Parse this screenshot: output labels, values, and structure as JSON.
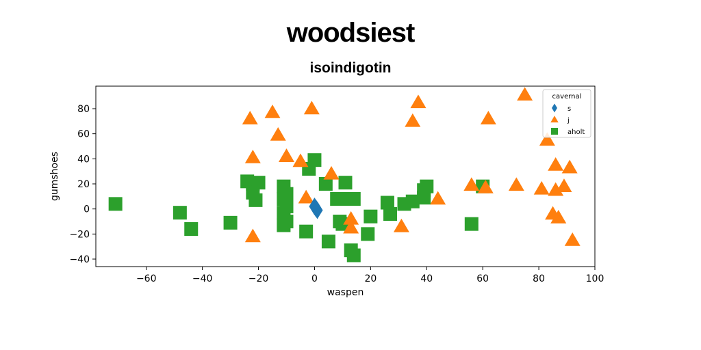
{
  "chart_data": {
    "type": "scatter",
    "title": "woodsiest",
    "subtitle": "isoindigotin",
    "xlabel": "waspen",
    "ylabel": "gumshoes",
    "xlim": [
      -78,
      100
    ],
    "ylim": [
      -46,
      98
    ],
    "xticks": [
      -60,
      -40,
      -20,
      0,
      20,
      40,
      60,
      80,
      100
    ],
    "yticks": [
      -40,
      -20,
      0,
      20,
      40,
      60,
      80
    ],
    "grid": false,
    "legend_title": "cavernal",
    "legend_position": "top-right",
    "series": [
      {
        "name": "s",
        "marker": "diamond",
        "color": "#1f77b4",
        "points": [
          [
            0.5,
            0.5
          ],
          [
            0.0,
            2.0
          ],
          [
            1.0,
            -1.0
          ]
        ]
      },
      {
        "name": "j",
        "marker": "triangle",
        "color": "#ff7f0e",
        "points": [
          [
            -23,
            72
          ],
          [
            -15,
            77
          ],
          [
            -13,
            59
          ],
          [
            -1,
            80
          ],
          [
            -22,
            41
          ],
          [
            -10,
            42
          ],
          [
            -5,
            38
          ],
          [
            -3,
            9
          ],
          [
            6,
            28
          ],
          [
            13,
            -8
          ],
          [
            13,
            -15
          ],
          [
            31,
            -14
          ],
          [
            35,
            70
          ],
          [
            37,
            85
          ],
          [
            44,
            8
          ],
          [
            56,
            19
          ],
          [
            61,
            17
          ],
          [
            62,
            72
          ],
          [
            72,
            19
          ],
          [
            75,
            91
          ],
          [
            81,
            16
          ],
          [
            83,
            55
          ],
          [
            85,
            -4
          ],
          [
            86,
            35
          ],
          [
            86,
            15
          ],
          [
            87,
            -7
          ],
          [
            89,
            18
          ],
          [
            91,
            33
          ],
          [
            92,
            -25
          ],
          [
            -22,
            -22
          ]
        ]
      },
      {
        "name": "aholt",
        "marker": "square",
        "color": "#2ca02c",
        "points": [
          [
            -71,
            4
          ],
          [
            -48,
            -3
          ],
          [
            -44,
            -16
          ],
          [
            -30,
            -11
          ],
          [
            -24,
            22
          ],
          [
            -22,
            20
          ],
          [
            -22,
            13
          ],
          [
            -21,
            7
          ],
          [
            -20,
            21
          ],
          [
            -11,
            18
          ],
          [
            -11,
            8
          ],
          [
            -11,
            -3
          ],
          [
            -11,
            -13
          ],
          [
            -10,
            12
          ],
          [
            -10,
            2
          ],
          [
            -10,
            -10
          ],
          [
            -3,
            -18
          ],
          [
            -2,
            32
          ],
          [
            0,
            39
          ],
          [
            4,
            20
          ],
          [
            5,
            -26
          ],
          [
            8,
            8
          ],
          [
            9,
            -10
          ],
          [
            10,
            -12
          ],
          [
            11,
            21
          ],
          [
            12,
            8
          ],
          [
            13,
            -33
          ],
          [
            14,
            -37
          ],
          [
            14,
            8
          ],
          [
            19,
            -20
          ],
          [
            20,
            -6
          ],
          [
            26,
            5
          ],
          [
            27,
            -4
          ],
          [
            32,
            4
          ],
          [
            35,
            6
          ],
          [
            39,
            15
          ],
          [
            39,
            9
          ],
          [
            40,
            18
          ],
          [
            56,
            -12
          ],
          [
            60,
            18
          ]
        ]
      }
    ]
  }
}
